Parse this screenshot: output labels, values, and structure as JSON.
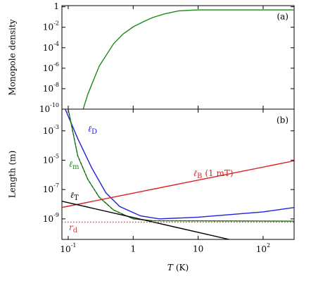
{
  "chart_data": [
    {
      "type": "line",
      "panel_label": "(a)",
      "ylabel": "Monopole density",
      "yscale": "log",
      "xscale": "log",
      "xlim": [
        0.08,
        300
      ],
      "ylim": [
        1e-10,
        1.3
      ],
      "xticks": [
        {
          "value": 0.1,
          "base": "10",
          "exponent": "-1"
        },
        1,
        10,
        {
          "value": 100,
          "base": "10",
          "exponent": "2"
        }
      ],
      "yticks": [
        1,
        {
          "value": 0.01,
          "base": "10",
          "exponent": "-2"
        },
        {
          "value": 0.0001,
          "base": "10",
          "exponent": "-4"
        },
        {
          "value": 1e-06,
          "base": "10",
          "exponent": "-6"
        },
        {
          "value": 1e-08,
          "base": "10",
          "exponent": "-8"
        },
        {
          "value": 1e-10,
          "base": "10",
          "exponent": "-10"
        }
      ],
      "series": [
        {
          "color": "#1a8a1a",
          "x": [
            0.17,
            0.2,
            0.3,
            0.5,
            0.7,
            1,
            1.5,
            2,
            3,
            5,
            10,
            30,
            100,
            300
          ],
          "values": [
            1e-10,
            2.8e-09,
            1.6e-06,
            0.00025,
            0.0022,
            0.011,
            0.04,
            0.09,
            0.2,
            0.4,
            0.5,
            0.5,
            0.5,
            0.5
          ]
        }
      ]
    },
    {
      "type": "line",
      "panel_label": "(b)",
      "ylabel": "Length (m)",
      "yscale": "log",
      "xscale": "log",
      "xlabel_symbol": "T",
      "xlabel_unit": "(K)",
      "xlim": [
        0.08,
        300
      ],
      "ylim": [
        4e-11,
        0.03
      ],
      "xticks": [
        {
          "value": 0.1,
          "base": "10",
          "exponent": "-1"
        },
        1,
        10,
        {
          "value": 100,
          "base": "10",
          "exponent": "2"
        }
      ],
      "yticks": [
        {
          "value": 0.001,
          "base": "10",
          "exponent": "-3"
        },
        {
          "value": 1e-05,
          "base": "10",
          "exponent": "-5"
        },
        {
          "value": 1e-07,
          "base": "10",
          "exponent": "-7"
        },
        {
          "value": 1e-09,
          "base": "10",
          "exponent": "-9"
        }
      ],
      "series": [
        {
          "name": "ℓ",
          "subscript": "D",
          "color": "#2020e0",
          "x": [
            0.09,
            0.14,
            0.23,
            0.38,
            0.62,
            1.3,
            2.5,
            10,
            100,
            300
          ],
          "values": [
            0.03,
            0.0003,
            3e-06,
            6e-08,
            7e-09,
            1.6e-09,
            1e-09,
            1.3e-09,
            3e-09,
            6e-09
          ]
        },
        {
          "name": "ℓ",
          "subscript": "m",
          "color": "#1a8a1a",
          "dashed": true,
          "x": [
            0.1,
            0.14,
            0.2,
            0.3,
            0.5,
            1,
            2,
            300
          ],
          "values": [
            0.03,
            2e-05,
            5e-07,
            3e-08,
            4e-09,
            1e-09,
            7.5e-10,
            7e-10
          ]
        },
        {
          "name": "ℓ",
          "subscript": "B",
          "note": "(1 mT)",
          "color": "#e02020",
          "x": [
            0.08,
            300
          ],
          "values": [
            6e-09,
            9e-06
          ]
        },
        {
          "name": "ℓ",
          "subscript": "T",
          "color": "#000000",
          "x": [
            0.08,
            30
          ],
          "values": [
            1.6e-08,
            4e-11
          ]
        },
        {
          "name": "r",
          "subscript": "d",
          "color": "#d04040",
          "dotted": true,
          "x": [
            0.08,
            300
          ],
          "values": [
            6e-10,
            6e-10
          ]
        }
      ]
    }
  ]
}
